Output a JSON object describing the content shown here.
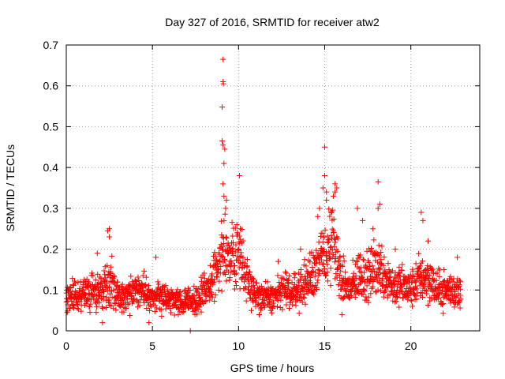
{
  "chart_data": {
    "type": "scatter",
    "title": "Day 327 of 2016, SRMTID for receiver atw2",
    "xlabel": "GPS time / hours",
    "ylabel": "SRMTID / TECUs",
    "xlim": [
      0,
      24
    ],
    "ylim": [
      0,
      0.7
    ],
    "xticks": [
      0,
      5,
      10,
      15,
      20
    ],
    "yticks": [
      0,
      0.1,
      0.2,
      0.3,
      0.4,
      0.5,
      0.6,
      0.7
    ],
    "grid": true,
    "marker": "+",
    "series_color": "#ff0000",
    "trend": {
      "x": [
        0,
        0.5,
        1,
        1.5,
        2,
        2.5,
        3,
        3.5,
        4,
        4.5,
        5,
        5.5,
        6,
        6.5,
        7,
        7.5,
        8,
        8.5,
        9,
        9.5,
        10,
        10.5,
        11,
        11.5,
        12,
        12.5,
        13,
        13.5,
        14,
        14.5,
        15,
        15.5,
        16,
        16.5,
        17,
        17.5,
        18,
        18.5,
        19,
        19.5,
        20,
        20.5,
        21,
        21.5,
        22,
        22.5,
        22.9
      ],
      "y": [
        0.09,
        0.085,
        0.09,
        0.095,
        0.1,
        0.12,
        0.09,
        0.085,
        0.1,
        0.1,
        0.08,
        0.085,
        0.075,
        0.07,
        0.075,
        0.08,
        0.09,
        0.12,
        0.2,
        0.17,
        0.2,
        0.13,
        0.09,
        0.08,
        0.08,
        0.1,
        0.095,
        0.1,
        0.12,
        0.16,
        0.18,
        0.22,
        0.12,
        0.1,
        0.14,
        0.13,
        0.16,
        0.14,
        0.11,
        0.11,
        0.1,
        0.13,
        0.13,
        0.1,
        0.1,
        0.1,
        0.09
      ]
    },
    "spread": 0.035,
    "highlights": [
      {
        "x": 9.1,
        "y": 0.665
      },
      {
        "x": 9.1,
        "y": 0.61
      },
      {
        "x": 9.12,
        "y": 0.605
      },
      {
        "x": 9.05,
        "y": 0.548
      },
      {
        "x": 9.05,
        "y": 0.465
      },
      {
        "x": 9.1,
        "y": 0.455
      },
      {
        "x": 9.2,
        "y": 0.445
      },
      {
        "x": 9.15,
        "y": 0.41
      },
      {
        "x": 9.1,
        "y": 0.36
      },
      {
        "x": 9.15,
        "y": 0.33
      },
      {
        "x": 9.25,
        "y": 0.3
      },
      {
        "x": 9.3,
        "y": 0.32
      },
      {
        "x": 10.05,
        "y": 0.38
      },
      {
        "x": 9.9,
        "y": 0.26
      },
      {
        "x": 10.1,
        "y": 0.25
      },
      {
        "x": 15.0,
        "y": 0.45
      },
      {
        "x": 15.0,
        "y": 0.38
      },
      {
        "x": 14.9,
        "y": 0.35
      },
      {
        "x": 15.1,
        "y": 0.34
      },
      {
        "x": 15.1,
        "y": 0.32
      },
      {
        "x": 15.6,
        "y": 0.36
      },
      {
        "x": 15.6,
        "y": 0.34
      },
      {
        "x": 15.7,
        "y": 0.35
      },
      {
        "x": 15.5,
        "y": 0.33
      },
      {
        "x": 14.7,
        "y": 0.3
      },
      {
        "x": 14.6,
        "y": 0.28
      },
      {
        "x": 18.1,
        "y": 0.365
      },
      {
        "x": 18.2,
        "y": 0.31
      },
      {
        "x": 18.1,
        "y": 0.3
      },
      {
        "x": 20.6,
        "y": 0.29
      },
      {
        "x": 20.7,
        "y": 0.27
      },
      {
        "x": 2.4,
        "y": 0.245
      },
      {
        "x": 2.5,
        "y": 0.25
      },
      {
        "x": 2.5,
        "y": 0.23
      },
      {
        "x": 1.8,
        "y": 0.19
      },
      {
        "x": 5.2,
        "y": 0.18
      },
      {
        "x": 2.1,
        "y": 0.02
      },
      {
        "x": 4.8,
        "y": 0.02
      },
      {
        "x": 7.2,
        "y": 0.0
      },
      {
        "x": 17.2,
        "y": 0.27
      },
      {
        "x": 17.8,
        "y": 0.25
      },
      {
        "x": 16.9,
        "y": 0.3
      },
      {
        "x": 19.1,
        "y": 0.2
      },
      {
        "x": 21.0,
        "y": 0.22
      },
      {
        "x": 13.6,
        "y": 0.2
      },
      {
        "x": 12.3,
        "y": 0.17
      },
      {
        "x": 11.2,
        "y": 0.04
      },
      {
        "x": 6.5,
        "y": 0.04
      },
      {
        "x": 16.0,
        "y": 0.04
      },
      {
        "x": 22.7,
        "y": 0.18
      }
    ]
  }
}
